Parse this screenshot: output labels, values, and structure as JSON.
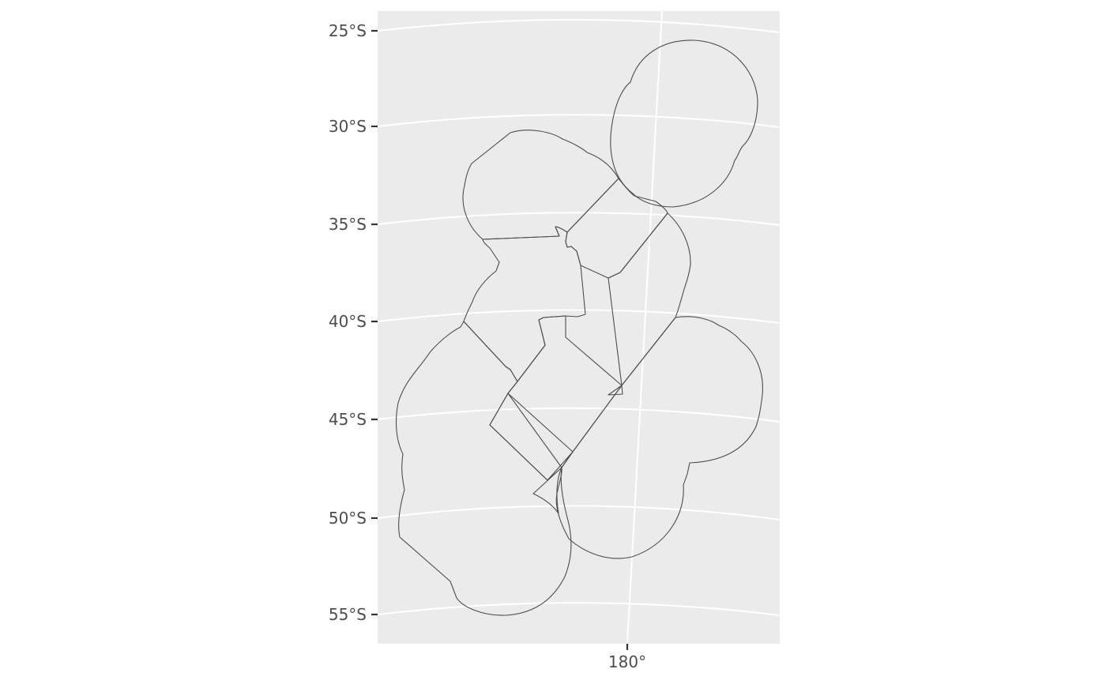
{
  "map": {
    "y_axis": {
      "ticks": [
        {
          "label": "25°S",
          "lat": -25
        },
        {
          "label": "30°S",
          "lat": -30
        },
        {
          "label": "35°S",
          "lat": -35
        },
        {
          "label": "40°S",
          "lat": -40
        },
        {
          "label": "45°S",
          "lat": -45
        },
        {
          "label": "50°S",
          "lat": -50
        },
        {
          "label": "55°S",
          "lat": -55
        }
      ]
    },
    "x_axis": {
      "ticks": [
        {
          "label": "180°",
          "lon": 180
        }
      ]
    },
    "panel_background": "#ebebeb",
    "graticule_color": "#ffffff",
    "outline_color": "#4d4d4d"
  }
}
